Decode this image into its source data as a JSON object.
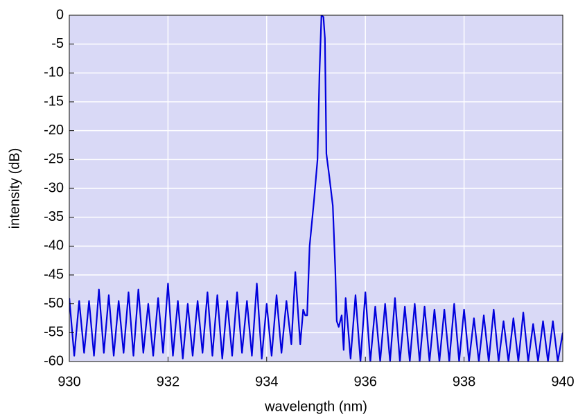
{
  "chart_data": {
    "type": "line",
    "xlabel": "wavelength (nm)",
    "ylabel": "intensity (dB)",
    "xlim": [
      930,
      940
    ],
    "xticks": [
      930,
      932,
      934,
      936,
      938,
      940
    ],
    "ylim": [
      -60,
      0
    ],
    "yticks": [
      0,
      -5,
      -10,
      -15,
      -20,
      -25,
      -30,
      -35,
      -40,
      -45,
      -50,
      -55,
      -60
    ],
    "grid": true,
    "background": "#d9d9f6",
    "series": [
      {
        "color": "#0000dd",
        "x": [
          930,
          930.1,
          930.2,
          930.3,
          930.4,
          930.5,
          930.6,
          930.7,
          930.8,
          930.9,
          931,
          931.1,
          931.2,
          931.3,
          931.4,
          931.5,
          931.6,
          931.7,
          931.8,
          931.9,
          932,
          932.1,
          932.2,
          932.3,
          932.4,
          932.5,
          932.6,
          932.7,
          932.8,
          932.9,
          933,
          933.1,
          933.2,
          933.3,
          933.4,
          933.5,
          933.6,
          933.7,
          933.8,
          933.9,
          934,
          934.1,
          934.2,
          934.3,
          934.4,
          934.5,
          934.58,
          934.68,
          934.74,
          934.78,
          934.82,
          934.87,
          934.96,
          935.03,
          935.07,
          935.11,
          935.15,
          935.18,
          935.21,
          935.27,
          935.34,
          935.39,
          935.42,
          935.46,
          935.52,
          935.56,
          935.6,
          935.7,
          935.8,
          935.9,
          936,
          936.1,
          936.2,
          936.3,
          936.4,
          936.5,
          936.6,
          936.7,
          936.8,
          936.9,
          937,
          937.1,
          937.2,
          937.3,
          937.4,
          937.5,
          937.6,
          937.7,
          937.8,
          937.9,
          938,
          938.1,
          938.2,
          938.3,
          938.4,
          938.5,
          938.6,
          938.7,
          938.8,
          938.9,
          939,
          939.1,
          939.2,
          939.3,
          939.4,
          939.5,
          939.6,
          939.7,
          939.8,
          939.9,
          940
        ],
        "values": [
          -49,
          -59,
          -49.5,
          -58.5,
          -49.5,
          -59,
          -47.5,
          -58.5,
          -48.5,
          -59,
          -49.5,
          -58.5,
          -48,
          -59,
          -47.5,
          -58.5,
          -50,
          -59,
          -49,
          -58.5,
          -46.5,
          -59,
          -49.5,
          -59.5,
          -50,
          -59,
          -49.5,
          -58.5,
          -48,
          -59,
          -48.5,
          -59.5,
          -49.5,
          -59,
          -48,
          -58.5,
          -49.5,
          -59,
          -46.5,
          -59.5,
          -50,
          -59,
          -48.5,
          -58.5,
          -49.5,
          -57,
          -44.5,
          -57,
          -51,
          -52,
          -52,
          -40,
          -32,
          -25,
          -10,
          0,
          -0.3,
          -4,
          -24,
          -28,
          -33,
          -44,
          -53,
          -54,
          -52,
          -58,
          -49,
          -59.5,
          -48.5,
          -60,
          -48,
          -60,
          -50.5,
          -60,
          -50,
          -60,
          -49,
          -60,
          -50.5,
          -60,
          -50,
          -60,
          -50.5,
          -60,
          -51,
          -60,
          -51,
          -60,
          -50,
          -60,
          -51,
          -60,
          -52.5,
          -60,
          -52,
          -60,
          -51,
          -60,
          -53,
          -60,
          -52.5,
          -60,
          -51.5,
          -60,
          -53.5,
          -60,
          -53,
          -60,
          -53,
          -60,
          -55
        ]
      }
    ]
  }
}
